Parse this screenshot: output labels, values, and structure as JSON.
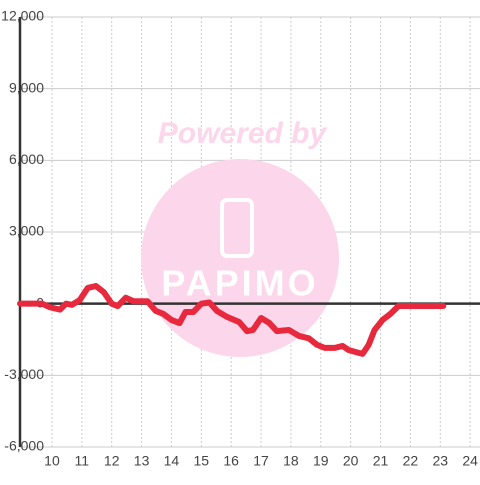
{
  "chart_data": {
    "type": "line",
    "watermark": {
      "line1": "Powered by",
      "line2": "PAPIMO"
    },
    "x": [
      8.93,
      9.67,
      9.93,
      10.27,
      10.47,
      10.67,
      10.93,
      11.2,
      11.47,
      11.73,
      12.0,
      12.2,
      12.47,
      12.73,
      13.2,
      13.47,
      13.73,
      14.0,
      14.27,
      14.47,
      14.73,
      15.0,
      15.27,
      15.53,
      15.87,
      16.27,
      16.53,
      16.73,
      17.0,
      17.27,
      17.53,
      17.93,
      18.27,
      18.6,
      18.87,
      19.13,
      19.47,
      19.73,
      19.93,
      20.27,
      20.4,
      20.6,
      20.8,
      21.07,
      21.33,
      21.6,
      21.93,
      23.1
    ],
    "values": [
      0,
      0,
      -150,
      -250,
      0,
      -50,
      150,
      660,
      740,
      490,
      0,
      -100,
      250,
      100,
      100,
      -300,
      -430,
      -680,
      -810,
      -350,
      -350,
      0,
      50,
      -310,
      -560,
      -770,
      -1150,
      -1100,
      -600,
      -800,
      -1150,
      -1100,
      -1350,
      -1450,
      -1720,
      -1850,
      -1850,
      -1770,
      -1940,
      -2060,
      -2100,
      -1730,
      -1100,
      -680,
      -430,
      -100,
      -100,
      -100
    ],
    "color": "#e8283c",
    "xlim": [
      8.93,
      24.33
    ],
    "xticks": [
      10,
      11,
      12,
      13,
      14,
      15,
      16,
      17,
      18,
      19,
      20,
      21,
      22,
      23,
      24
    ],
    "ylim": [
      -6000,
      12000
    ],
    "yticks": [
      {
        "value": -6000,
        "label": "-6,000"
      },
      {
        "value": -3000,
        "label": "-3,000"
      },
      0,
      {
        "value": 3000,
        "label": "3,000"
      },
      {
        "value": 6000,
        "label": "6,000"
      },
      {
        "value": 9000,
        "label": "9,000"
      },
      {
        "value": 12000,
        "label": "12,000"
      }
    ],
    "grid": true
  }
}
